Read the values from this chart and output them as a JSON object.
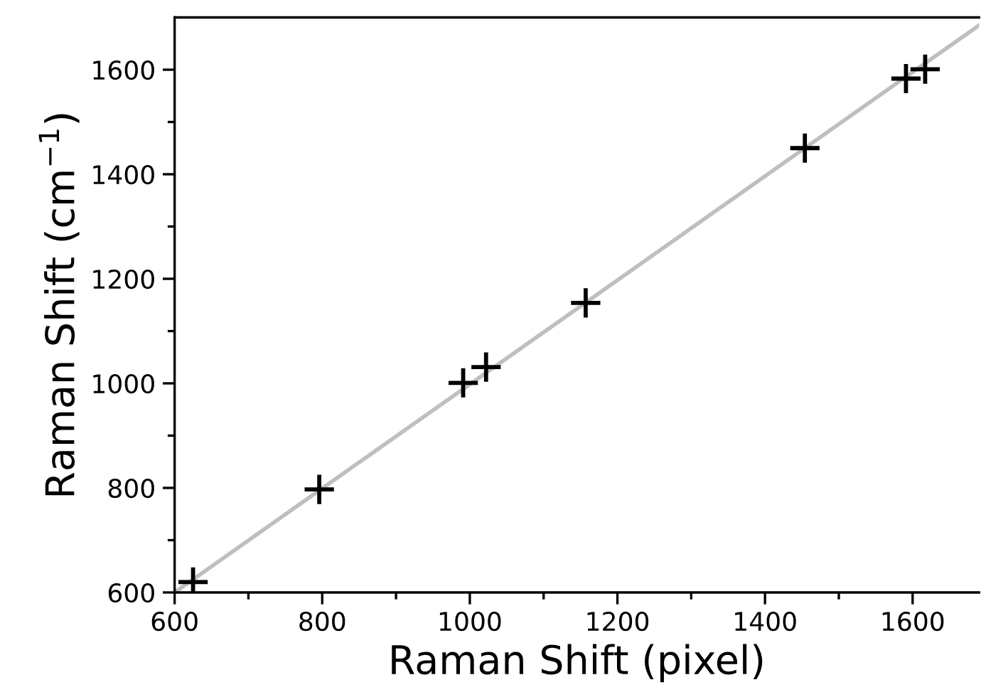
{
  "chart_data": {
    "type": "scatter",
    "xlabel": "Raman Shift (pixel)",
    "ylabel": "Raman Shift (cm$^{−1}$)",
    "xlim": [
      600,
      1690
    ],
    "ylim": [
      600,
      1700
    ],
    "xticks": [
      600,
      {
        "value": 700,
        "label": null
      },
      800,
      {
        "value": 900,
        "label": null
      },
      1000,
      {
        "value": 1100,
        "label": null
      },
      1200,
      {
        "value": 1300,
        "label": null
      },
      1400,
      {
        "value": 1500,
        "label": null
      },
      1600
    ],
    "yticks": [
      600,
      {
        "value": 700,
        "label": null
      },
      800,
      {
        "value": 900,
        "label": null
      },
      1000,
      {
        "value": 1100,
        "label": null
      },
      1200,
      {
        "value": 1300,
        "label": null
      },
      1400,
      {
        "value": 1500,
        "label": null
      },
      1600
    ],
    "grid": false,
    "legend": false,
    "series": [
      {
        "marker": "cross",
        "color": "#000000",
        "x": [
          625,
          796,
          991,
          1022,
          1157,
          1454,
          1591,
          1617
        ],
        "values": [
          620,
          797,
          1001,
          1031,
          1154,
          1450,
          1583,
          1601
        ]
      },
      {
        "type": "line",
        "color": "#bfbfbf",
        "x": [
          600,
          1690
        ],
        "values": [
          600,
          1685
        ]
      }
    ]
  }
}
